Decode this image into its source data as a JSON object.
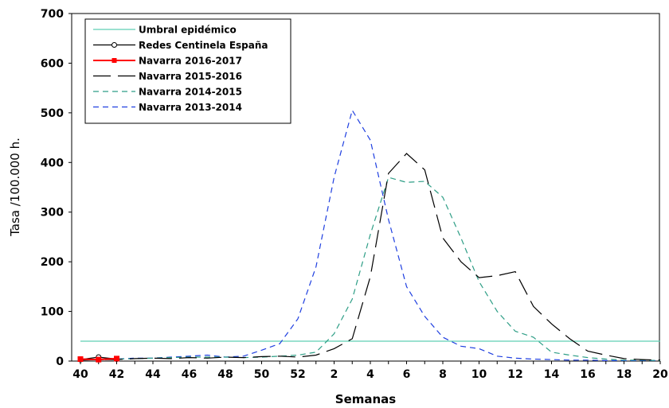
{
  "chart_data": {
    "type": "line",
    "xlabel": "Semanas",
    "ylabel": "Tasa /100.000 h.",
    "ylim": [
      0,
      700
    ],
    "yticks": [
      0,
      100,
      200,
      300,
      400,
      500,
      600,
      700
    ],
    "categories": [
      "40",
      "41",
      "42",
      "43",
      "44",
      "45",
      "46",
      "47",
      "48",
      "49",
      "50",
      "51",
      "52",
      "1",
      "2",
      "3",
      "4",
      "5",
      "6",
      "7",
      "8",
      "9",
      "10",
      "11",
      "12",
      "13",
      "14",
      "15",
      "16",
      "17",
      "18",
      "19",
      "20"
    ],
    "tick_labels": [
      "40",
      "42",
      "44",
      "46",
      "48",
      "50",
      "52",
      "2",
      "4",
      "6",
      "8",
      "10",
      "12",
      "14",
      "16",
      "18",
      "20"
    ],
    "legend_position": "top-left",
    "series": [
      {
        "name": "Umbral epidémico",
        "color": "#5fcfb5",
        "dash": "solid",
        "marker": "none",
        "values": [
          40,
          40,
          40,
          40,
          40,
          40,
          40,
          40,
          40,
          40,
          40,
          40,
          40,
          40,
          40,
          40,
          40,
          40,
          40,
          40,
          40,
          40,
          40,
          40,
          40,
          40,
          40,
          40,
          40,
          40,
          40,
          40,
          40
        ]
      },
      {
        "name": "Redes Centinela España",
        "color": "#000000",
        "dash": "solid",
        "marker": "circle",
        "values": [
          3,
          8,
          4,
          null,
          null,
          null,
          null,
          null,
          null,
          null,
          null,
          null,
          null,
          null,
          null,
          null,
          null,
          null,
          null,
          null,
          null,
          null,
          null,
          null,
          null,
          null,
          null,
          null,
          null,
          null,
          null,
          null,
          null
        ]
      },
      {
        "name": "Navarra 2016-2017",
        "color": "#ff0000",
        "dash": "solid",
        "marker": "square",
        "values": [
          4,
          3,
          5,
          null,
          null,
          null,
          null,
          null,
          null,
          null,
          null,
          null,
          null,
          null,
          null,
          null,
          null,
          null,
          null,
          null,
          null,
          null,
          null,
          null,
          null,
          null,
          null,
          null,
          null,
          null,
          null,
          null,
          null
        ]
      },
      {
        "name": "Navarra 2015-2016",
        "color": "#000000",
        "dash": "long",
        "marker": "none",
        "values": [
          2,
          3,
          3,
          5,
          6,
          5,
          7,
          6,
          8,
          7,
          9,
          10,
          8,
          12,
          25,
          45,
          170,
          378,
          418,
          385,
          248,
          200,
          168,
          172,
          180,
          110,
          75,
          45,
          20,
          12,
          5,
          3,
          2
        ]
      },
      {
        "name": "Navarra 2014-2015",
        "color": "#2e9e86",
        "dash": "short",
        "marker": "none",
        "values": [
          3,
          4,
          4,
          5,
          6,
          7,
          8,
          8,
          8,
          7,
          8,
          10,
          12,
          18,
          55,
          125,
          255,
          370,
          360,
          362,
          330,
          248,
          160,
          100,
          60,
          48,
          18,
          12,
          7,
          4,
          2,
          2,
          1
        ]
      },
      {
        "name": "Navarra 2013-2014",
        "color": "#1f3fe0",
        "dash": "short",
        "marker": "none",
        "values": [
          4,
          3,
          4,
          6,
          6,
          8,
          10,
          12,
          8,
          10,
          22,
          35,
          85,
          190,
          370,
          505,
          445,
          285,
          150,
          90,
          48,
          30,
          25,
          10,
          6,
          4,
          3,
          2,
          2,
          1,
          1,
          1,
          1
        ]
      }
    ]
  }
}
